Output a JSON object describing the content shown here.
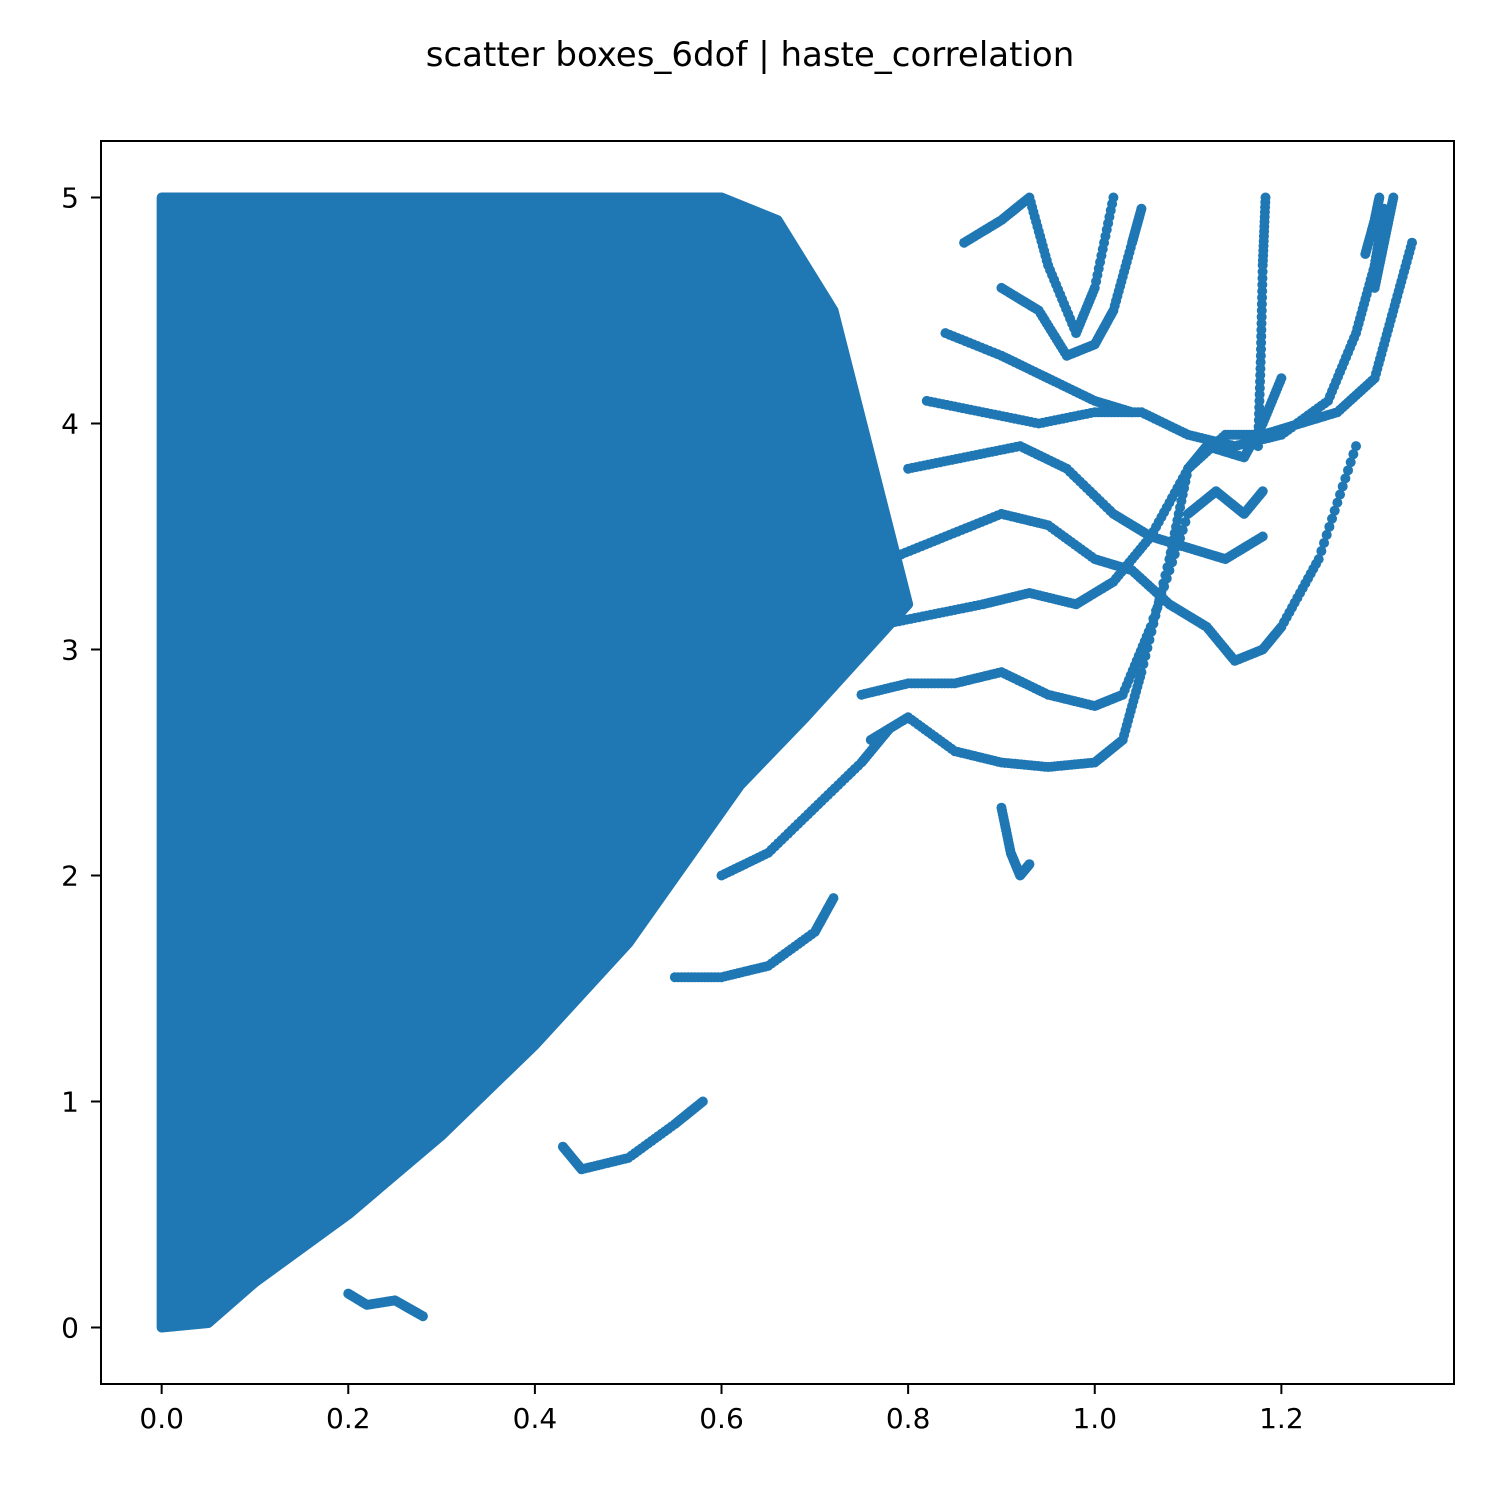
{
  "chart_data": {
    "type": "scatter",
    "title": "scatter boxes_6dof | haste_correlation",
    "xlabel": "",
    "ylabel": "",
    "xlim": [
      -0.065,
      1.385
    ],
    "ylim": [
      -0.25,
      5.25
    ],
    "x_ticks": [
      0.0,
      0.2,
      0.4,
      0.6,
      0.8,
      1.0,
      1.2
    ],
    "x_tick_labels": [
      "0.0",
      "0.2",
      "0.4",
      "0.6",
      "0.8",
      "1.0",
      "1.2"
    ],
    "y_ticks": [
      0,
      1,
      2,
      3,
      4,
      5
    ],
    "y_tick_labels": [
      "0",
      "1",
      "2",
      "3",
      "4",
      "5"
    ],
    "grid": false,
    "legend": "none",
    "marker_color": "#1f77b4",
    "dense_region": {
      "description_points": [
        [
          0.0,
          0.0
        ],
        [
          0.0,
          5.0
        ],
        [
          0.45,
          5.0
        ],
        [
          0.6,
          5.0
        ],
        [
          0.66,
          4.9
        ],
        [
          0.72,
          4.5
        ],
        [
          0.8,
          3.2
        ],
        [
          0.69,
          2.7
        ],
        [
          0.62,
          2.4
        ],
        [
          0.5,
          1.7
        ],
        [
          0.4,
          1.25
        ],
        [
          0.3,
          0.85
        ],
        [
          0.2,
          0.5
        ],
        [
          0.1,
          0.2
        ],
        [
          0.05,
          0.02
        ]
      ]
    },
    "series": [
      {
        "values_xy": [
          [
            0.76,
            2.6
          ],
          [
            0.8,
            2.7
          ],
          [
            0.85,
            2.55
          ],
          [
            0.9,
            2.5
          ],
          [
            0.95,
            2.48
          ],
          [
            1.0,
            2.5
          ],
          [
            1.03,
            2.6
          ],
          [
            1.05,
            2.9
          ],
          [
            1.08,
            3.4
          ],
          [
            1.1,
            3.8
          ],
          [
            1.12,
            3.9
          ],
          [
            1.16,
            3.85
          ],
          [
            1.18,
            4.0
          ],
          [
            1.2,
            4.2
          ]
        ]
      },
      {
        "values_xy": [
          [
            0.75,
            2.8
          ],
          [
            0.8,
            2.85
          ],
          [
            0.85,
            2.85
          ],
          [
            0.9,
            2.9
          ],
          [
            0.95,
            2.8
          ],
          [
            1.0,
            2.75
          ],
          [
            1.03,
            2.8
          ],
          [
            1.06,
            3.1
          ],
          [
            1.1,
            3.6
          ],
          [
            1.13,
            3.7
          ],
          [
            1.16,
            3.6
          ],
          [
            1.18,
            3.7
          ]
        ]
      },
      {
        "values_xy": [
          [
            0.76,
            3.1
          ],
          [
            0.82,
            3.15
          ],
          [
            0.88,
            3.2
          ],
          [
            0.93,
            3.25
          ],
          [
            0.98,
            3.2
          ],
          [
            1.02,
            3.3
          ],
          [
            1.06,
            3.5
          ],
          [
            1.1,
            3.45
          ],
          [
            1.14,
            3.4
          ],
          [
            1.18,
            3.5
          ]
        ]
      },
      {
        "values_xy": [
          [
            0.78,
            3.4
          ],
          [
            0.84,
            3.5
          ],
          [
            0.9,
            3.6
          ],
          [
            0.95,
            3.55
          ],
          [
            1.0,
            3.4
          ],
          [
            1.04,
            3.35
          ],
          [
            1.08,
            3.2
          ],
          [
            1.12,
            3.1
          ],
          [
            1.15,
            2.95
          ],
          [
            1.18,
            3.0
          ],
          [
            1.2,
            3.1
          ],
          [
            1.24,
            3.4
          ],
          [
            1.28,
            3.9
          ]
        ]
      },
      {
        "values_xy": [
          [
            0.8,
            3.8
          ],
          [
            0.86,
            3.85
          ],
          [
            0.92,
            3.9
          ],
          [
            0.97,
            3.8
          ],
          [
            1.02,
            3.6
          ],
          [
            1.06,
            3.5
          ],
          [
            1.1,
            3.8
          ],
          [
            1.14,
            3.95
          ],
          [
            1.18,
            3.95
          ],
          [
            1.22,
            4.0
          ],
          [
            1.26,
            4.05
          ],
          [
            1.3,
            4.2
          ],
          [
            1.32,
            4.5
          ],
          [
            1.34,
            4.8
          ]
        ]
      },
      {
        "values_xy": [
          [
            0.82,
            4.1
          ],
          [
            0.88,
            4.05
          ],
          [
            0.94,
            4.0
          ],
          [
            1.0,
            4.05
          ],
          [
            1.05,
            4.05
          ],
          [
            1.1,
            3.95
          ],
          [
            1.15,
            3.9
          ],
          [
            1.2,
            3.95
          ],
          [
            1.25,
            4.1
          ],
          [
            1.28,
            4.4
          ],
          [
            1.3,
            4.7
          ],
          [
            1.31,
            4.95
          ]
        ]
      },
      {
        "values_xy": [
          [
            0.84,
            4.4
          ],
          [
            0.9,
            4.3
          ],
          [
            0.95,
            4.2
          ],
          [
            1.0,
            4.1
          ],
          [
            1.04,
            4.05
          ]
        ]
      },
      {
        "values_xy": [
          [
            0.9,
            4.6
          ],
          [
            0.94,
            4.5
          ],
          [
            0.97,
            4.3
          ],
          [
            1.0,
            4.35
          ],
          [
            1.02,
            4.5
          ],
          [
            1.04,
            4.8
          ],
          [
            1.05,
            4.95
          ]
        ]
      },
      {
        "values_xy": [
          [
            0.86,
            4.8
          ],
          [
            0.9,
            4.9
          ],
          [
            0.93,
            5.0
          ],
          [
            0.95,
            4.7
          ],
          [
            0.98,
            4.4
          ],
          [
            1.0,
            4.6
          ],
          [
            1.02,
            5.0
          ]
        ]
      },
      {
        "values_xy": [
          [
            1.175,
            3.9
          ],
          [
            1.178,
            4.3
          ],
          [
            1.18,
            4.7
          ],
          [
            1.183,
            5.0
          ]
        ]
      },
      {
        "values_xy": [
          [
            1.29,
            4.75
          ],
          [
            1.3,
            4.9
          ],
          [
            1.305,
            5.0
          ]
        ]
      },
      {
        "values_xy": [
          [
            1.3,
            4.6
          ],
          [
            1.31,
            4.8
          ],
          [
            1.32,
            5.0
          ]
        ]
      },
      {
        "values_xy": [
          [
            0.9,
            2.3
          ],
          [
            0.91,
            2.1
          ],
          [
            0.92,
            2.0
          ],
          [
            0.93,
            2.05
          ]
        ]
      },
      {
        "values_xy": [
          [
            0.43,
            0.8
          ],
          [
            0.45,
            0.7
          ],
          [
            0.5,
            0.75
          ],
          [
            0.55,
            0.9
          ],
          [
            0.58,
            1.0
          ]
        ]
      },
      {
        "values_xy": [
          [
            0.2,
            0.15
          ],
          [
            0.22,
            0.1
          ],
          [
            0.25,
            0.12
          ],
          [
            0.28,
            0.05
          ]
        ]
      },
      {
        "values_xy": [
          [
            0.55,
            1.55
          ],
          [
            0.6,
            1.55
          ],
          [
            0.65,
            1.6
          ],
          [
            0.7,
            1.75
          ],
          [
            0.72,
            1.9
          ]
        ]
      },
      {
        "values_xy": [
          [
            0.6,
            2.0
          ],
          [
            0.65,
            2.1
          ],
          [
            0.7,
            2.3
          ],
          [
            0.75,
            2.5
          ],
          [
            0.78,
            2.65
          ]
        ]
      }
    ]
  }
}
